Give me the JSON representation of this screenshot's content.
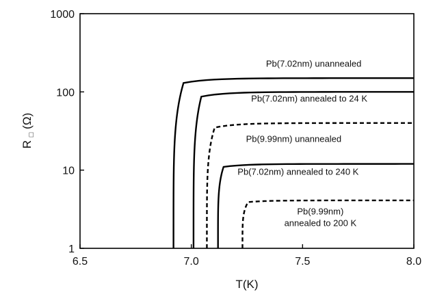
{
  "chart_data": {
    "type": "line",
    "title": "",
    "xlabel": "T(K)",
    "ylabel_main": "R",
    "ylabel_sub": "□",
    "ylabel_suffix": "(Ω)",
    "xlim": [
      6.5,
      8.0
    ],
    "ylim": [
      1,
      1000
    ],
    "yscale": "log",
    "grid": false,
    "xticks": [
      {
        "value": 6.5,
        "label": "6.5"
      },
      {
        "value": 7.0,
        "label": "7.0"
      },
      {
        "value": 7.5,
        "label": "7.5"
      },
      {
        "value": 8.0,
        "label": "8.0"
      }
    ],
    "yticks": [
      {
        "value": 1,
        "label": "1"
      },
      {
        "value": 10,
        "label": "10"
      },
      {
        "value": 100,
        "label": "100"
      },
      {
        "value": 1000,
        "label": "1000"
      }
    ],
    "series": [
      {
        "name": "Pb(7.02nm) unannealed",
        "style": "solid",
        "tc": 6.92,
        "width": 0.045,
        "rn": 150,
        "rn_start": 130
      },
      {
        "name": "Pb(7.02nm) annealed to 24 K",
        "style": "solid",
        "tc": 7.01,
        "width": 0.035,
        "rn": 100,
        "rn_start": 87
      },
      {
        "name": "Pb(9.99nm) unannealed",
        "style": "dashed",
        "tc": 7.07,
        "width": 0.035,
        "rn": 40,
        "rn_start": 35
      },
      {
        "name": "Pb(7.02nm) annealed to 240 K",
        "style": "solid",
        "tc": 7.12,
        "width": 0.025,
        "rn": 12,
        "rn_start": 11
      },
      {
        "name": "Pb(9.99nm) annealed to 200 K",
        "style": "dashed",
        "tc": 7.23,
        "width": 0.025,
        "rn": 4.1,
        "rn_start": 3.9
      }
    ],
    "annotations": [
      {
        "lines": [
          "Pb(7.02nm) unannealed"
        ],
        "x": 7.55,
        "y": 210,
        "anchor": "middle"
      },
      {
        "lines": [
          "Pb(7.02nm) annealed to 24 K"
        ],
        "x": 7.53,
        "y": 75,
        "anchor": "middle"
      },
      {
        "lines": [
          "Pb(9.99nm) unannealed"
        ],
        "x": 7.46,
        "y": 23,
        "anchor": "middle"
      },
      {
        "lines": [
          "Pb(7.02nm) annealed to 240 K"
        ],
        "x": 7.48,
        "y": 8.7,
        "anchor": "middle"
      },
      {
        "lines": [
          "Pb(9.99nm)",
          "annealed to 200 K"
        ],
        "x": 7.58,
        "y": 2.7,
        "anchor": "middle"
      }
    ]
  }
}
